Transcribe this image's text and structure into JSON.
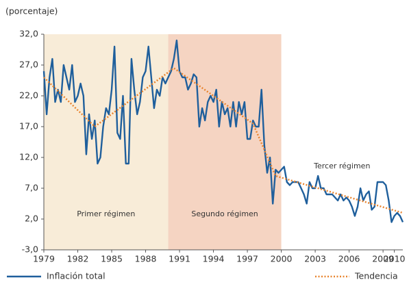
{
  "chart_data": {
    "type": "line",
    "y_label": "(porcentaje)",
    "xlim": [
      1979,
      2010.75
    ],
    "xticks": [
      1979,
      1982,
      1985,
      1988,
      1991,
      1994,
      1997,
      2000,
      2003,
      2006,
      2009,
      2010
    ],
    "ylim": [
      -3,
      32
    ],
    "yticks": [
      {
        "value": 32,
        "label": "32,0"
      },
      {
        "value": 27,
        "label": "27,0"
      },
      {
        "value": 22,
        "label": "22,0"
      },
      {
        "value": 17,
        "label": "17,0"
      },
      {
        "value": 12,
        "label": "12,0"
      },
      {
        "value": 7,
        "label": "7,0"
      },
      {
        "value": 2,
        "label": "2,0"
      },
      {
        "value": -3,
        "label": "-3,0"
      }
    ],
    "regions": [
      {
        "label": "Primer régimen",
        "start": 1979,
        "end": 1990,
        "color": "#f8ecd8"
      },
      {
        "label": "Segundo régimen",
        "start": 1990,
        "end": 2000,
        "color": "#f5d4c2"
      },
      {
        "label": "Tercer régimen",
        "start": 2000,
        "end": 2010.75
      }
    ],
    "series": [
      {
        "name": "Inflación total",
        "color": "#1f5f9c",
        "style": "solid",
        "x": [
          1979,
          1979.25,
          1979.5,
          1979.75,
          1980,
          1980.25,
          1980.5,
          1980.75,
          1981,
          1981.25,
          1981.5,
          1981.75,
          1982,
          1982.25,
          1982.5,
          1982.75,
          1983,
          1983.25,
          1983.5,
          1983.75,
          1984,
          1984.25,
          1984.5,
          1984.75,
          1985,
          1985.25,
          1985.5,
          1985.75,
          1986,
          1986.25,
          1986.5,
          1986.75,
          1987,
          1987.25,
          1987.5,
          1987.75,
          1988,
          1988.25,
          1988.5,
          1988.75,
          1989,
          1989.25,
          1989.5,
          1989.75,
          1990,
          1990.25,
          1990.5,
          1990.75,
          1991,
          1991.25,
          1991.5,
          1991.75,
          1992,
          1992.25,
          1992.5,
          1992.75,
          1993,
          1993.25,
          1993.5,
          1993.75,
          1994,
          1994.25,
          1994.5,
          1994.75,
          1995,
          1995.25,
          1995.5,
          1995.75,
          1996,
          1996.25,
          1996.5,
          1996.75,
          1997,
          1997.25,
          1997.5,
          1997.75,
          1998,
          1998.25,
          1998.5,
          1998.75,
          1999,
          1999.25,
          1999.5,
          1999.75,
          2000,
          2000.25,
          2000.5,
          2000.75,
          2001,
          2001.25,
          2001.5,
          2001.75,
          2002,
          2002.25,
          2002.5,
          2002.75,
          2003,
          2003.25,
          2003.5,
          2003.75,
          2004,
          2004.25,
          2004.5,
          2004.75,
          2005,
          2005.25,
          2005.5,
          2005.75,
          2006,
          2006.25,
          2006.5,
          2006.75,
          2007,
          2007.25,
          2007.5,
          2007.75,
          2008,
          2008.25,
          2008.5,
          2008.75,
          2009,
          2009.25,
          2009.5,
          2009.75,
          2010,
          2010.25,
          2010.5,
          2010.75
        ],
        "values": [
          26,
          19,
          25,
          28,
          21,
          23,
          21,
          27,
          25,
          23,
          27,
          21,
          22,
          24,
          22,
          12.5,
          19,
          15,
          18,
          11,
          12,
          17,
          20,
          19,
          23,
          30,
          16,
          15,
          22,
          11,
          11,
          28,
          23,
          19,
          21,
          25,
          26,
          30,
          25,
          20,
          23,
          22,
          25,
          24,
          25,
          26,
          28,
          31,
          26,
          25,
          25,
          23,
          24,
          25.5,
          25,
          17,
          20,
          18,
          21,
          22,
          21,
          23,
          17,
          21,
          19,
          20,
          17,
          21,
          17,
          21,
          19,
          21,
          15,
          15,
          18,
          17,
          17,
          23,
          14,
          9.5,
          12,
          4.5,
          10,
          9.5,
          10,
          10.5,
          8,
          7.5,
          8,
          8,
          8,
          7,
          6,
          4.5,
          8,
          7,
          7,
          9,
          7,
          7,
          6,
          6,
          6,
          5.5,
          5,
          6,
          5,
          5.5,
          5,
          4,
          2.5,
          4,
          7,
          5,
          6,
          6.5,
          3.5,
          4,
          8,
          8,
          8,
          7.5,
          5,
          1.5,
          2.5,
          3,
          2.5,
          1.5
        ]
      },
      {
        "name": "Tendencia",
        "color": "#e8842f",
        "style": "dotted",
        "x": [
          1979,
          1983.5,
          1990.5,
          1997.5,
          1999.5,
          2010.75
        ],
        "values": [
          25,
          17,
          26.5,
          17.5,
          9,
          3
        ]
      }
    ]
  }
}
